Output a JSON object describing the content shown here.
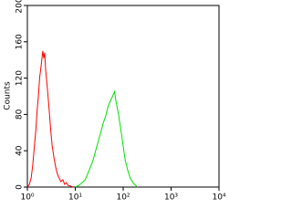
{
  "chart_data": {
    "type": "line",
    "ylabel": "Counts",
    "xscale": "log",
    "xlim": [
      1,
      10000
    ],
    "xticks": [
      {
        "value": 1,
        "label": "10⁰"
      },
      {
        "value": 10,
        "label": "10¹"
      },
      {
        "value": 100,
        "label": "10²"
      },
      {
        "value": 1000,
        "label": "10³"
      },
      {
        "value": 10000,
        "label": "10⁴"
      }
    ],
    "ylim": [
      0,
      200
    ],
    "yticks": [
      0,
      40,
      80,
      120,
      160,
      200
    ],
    "series": [
      {
        "color": "#ff0000",
        "x": [
          1.0,
          1.1,
          1.2,
          1.3,
          1.4,
          1.5,
          1.6,
          1.7,
          1.8,
          1.9,
          2.0,
          2.1,
          2.2,
          2.3,
          2.4,
          2.5,
          2.7,
          2.9,
          3.1,
          3.3,
          3.6,
          3.9,
          4.2,
          4.6,
          5,
          5.5,
          6,
          6.5,
          7,
          8,
          9
        ],
        "values": [
          0,
          3,
          10,
          25,
          45,
          62,
          85,
          100,
          120,
          130,
          140,
          150,
          142,
          148,
          130,
          120,
          100,
          80,
          60,
          45,
          32,
          22,
          15,
          10,
          6,
          8,
          3,
          5,
          2,
          1,
          0
        ]
      },
      {
        "color": "#00e000",
        "x": [
          10,
          12,
          14,
          16,
          18,
          20,
          23,
          26,
          30,
          34,
          38,
          43,
          48,
          54,
          60,
          66,
          72,
          80,
          90,
          100,
          110,
          125,
          140,
          160,
          180,
          200
        ],
        "values": [
          0,
          2,
          5,
          8,
          14,
          20,
          28,
          38,
          50,
          60,
          70,
          78,
          88,
          95,
          100,
          105,
          92,
          80,
          62,
          45,
          30,
          18,
          10,
          5,
          2,
          0
        ]
      }
    ]
  }
}
